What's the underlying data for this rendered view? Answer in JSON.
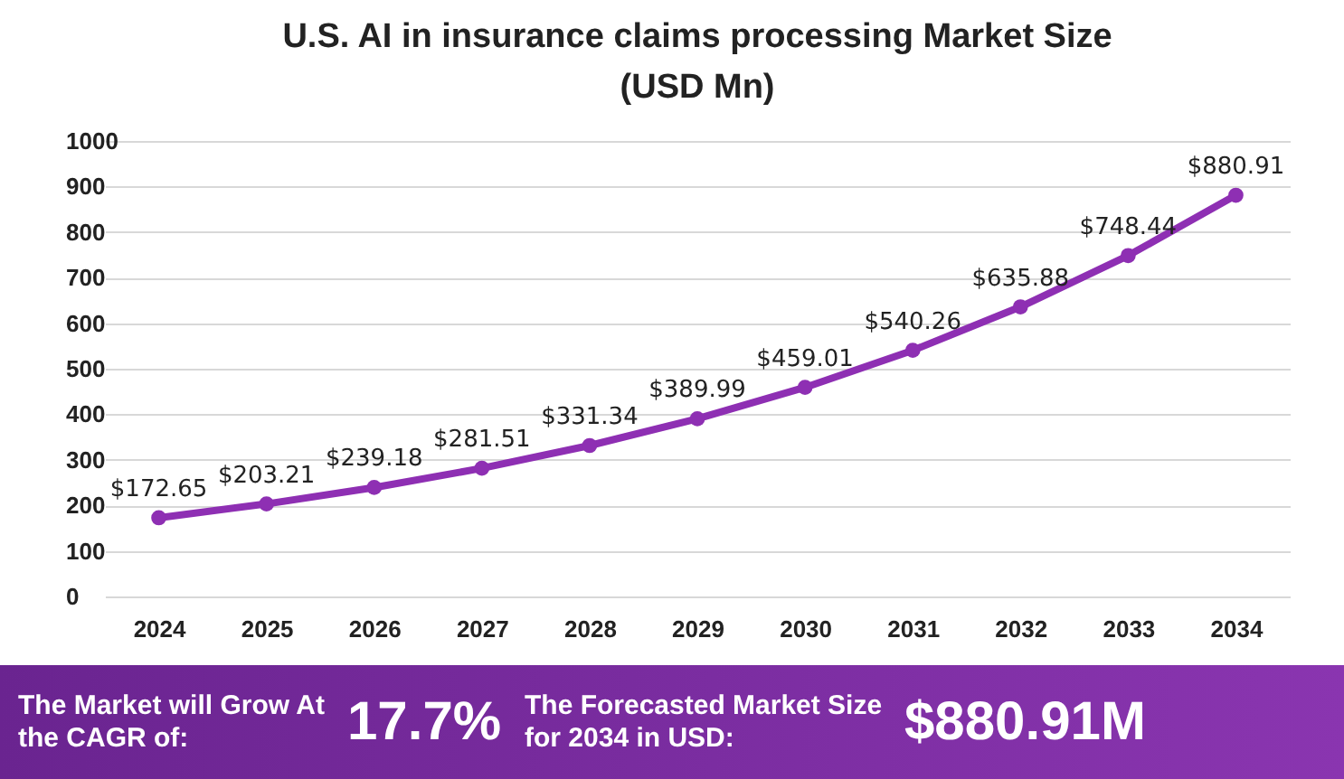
{
  "chart_data": {
    "type": "line",
    "title": [
      "U.S. AI in insurance claims processing Market Size",
      "(USD Mn)"
    ],
    "categories": [
      "2024",
      "2025",
      "2026",
      "2027",
      "2028",
      "2029",
      "2030",
      "2031",
      "2032",
      "2033",
      "2034"
    ],
    "series": [
      {
        "color": "#8e2fb3",
        "values": [
          172.65,
          203.21,
          239.18,
          281.51,
          331.34,
          389.99,
          459.01,
          540.26,
          635.88,
          748.44,
          880.91
        ],
        "value_labels": [
          "$172.65",
          "$203.21",
          "$239.18",
          "$281.51",
          "$331.34",
          "$389.99",
          "$459.01",
          "$540.26",
          "$635.88",
          "$748.44",
          "$880.91"
        ]
      }
    ],
    "ylim": [
      0,
      1000
    ],
    "yticks": [
      0,
      100,
      200,
      300,
      400,
      500,
      600,
      700,
      800,
      900,
      1000
    ],
    "grid": "y",
    "marker": "circle",
    "line_style": "solid",
    "annotations": [
      "The Market will Grow At the CAGR of:",
      "17.7%",
      "The Forecasted Market Size for 2034 in USD:",
      "$880.91M"
    ]
  }
}
